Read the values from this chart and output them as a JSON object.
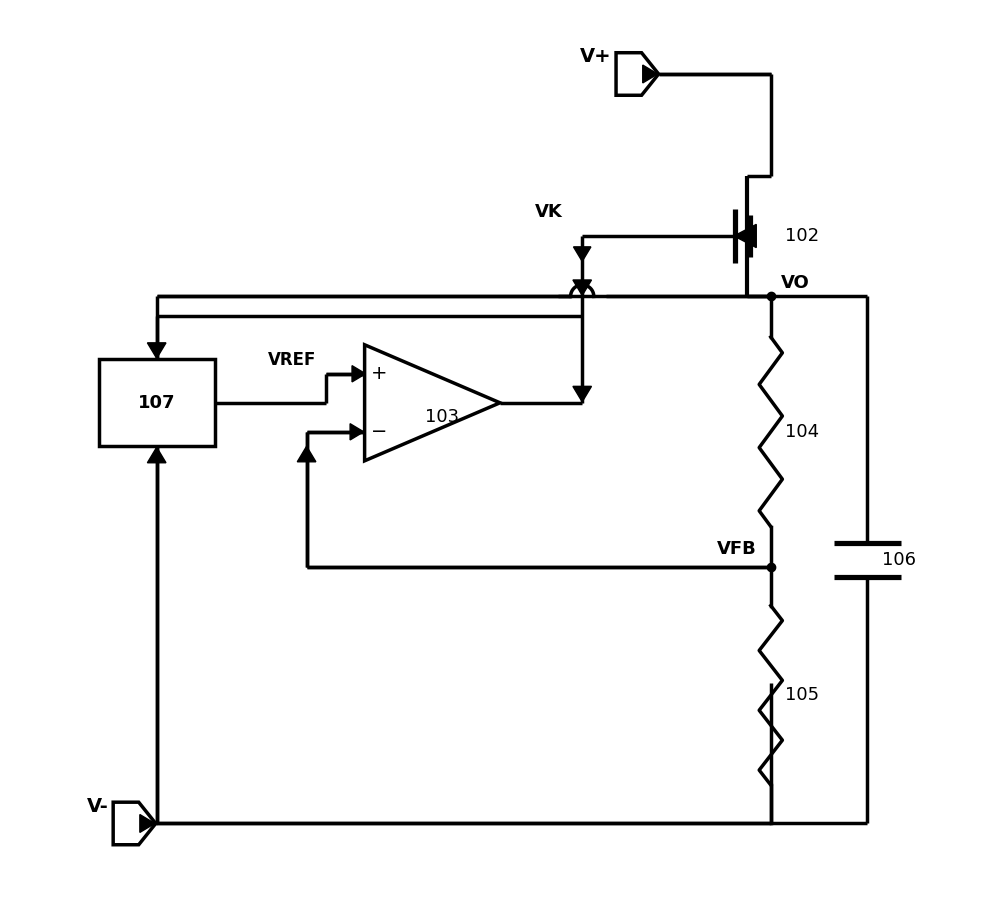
{
  "bg_color": "#ffffff",
  "line_color": "#000000",
  "line_width": 2.5,
  "fig_width": 10.0,
  "fig_height": 9.11,
  "labels": {
    "Vplus": "V+",
    "Vminus": "V-",
    "VK": "VK",
    "VO": "VO",
    "VFB": "VFB",
    "VREF": "VREF",
    "n102": "102",
    "n103": "103",
    "n104": "104",
    "n105": "105",
    "n106": "106",
    "n107": "107"
  }
}
